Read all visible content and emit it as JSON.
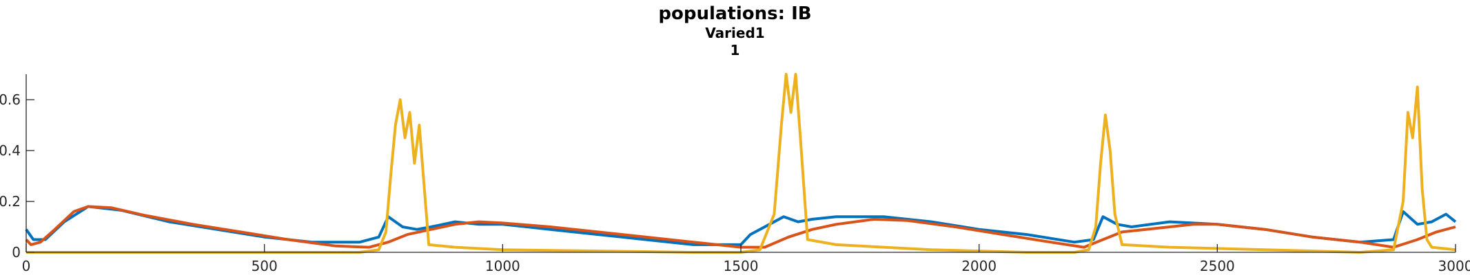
{
  "title": "populations: IB",
  "subtitle_1": "Varied1",
  "subtitle_2": "1",
  "chart_data": {
    "type": "line",
    "xlim": [
      0,
      3000
    ],
    "ylim": [
      0,
      0.7
    ],
    "grid": false,
    "xticks": [
      0,
      500,
      1000,
      1500,
      2000,
      2500,
      3000
    ],
    "xtick_labels": [
      "0",
      "500",
      "1000",
      "1500",
      "2000",
      "2500",
      "3000"
    ],
    "yticks": [
      0,
      0.2,
      0.4,
      0.6
    ],
    "ytick_labels": [
      "0",
      "0.2",
      "0.4",
      "0.6"
    ],
    "colors": {
      "blue": "#0072BD",
      "orange": "#D95319",
      "yellow": "#EDB120",
      "axis": "#262626"
    },
    "series": [
      {
        "color": "#0072BD",
        "x": [
          0,
          15,
          40,
          80,
          130,
          200,
          300,
          400,
          500,
          600,
          650,
          700,
          740,
          760,
          790,
          820,
          850,
          900,
          950,
          1000,
          1100,
          1200,
          1300,
          1400,
          1500,
          1520,
          1560,
          1590,
          1620,
          1650,
          1700,
          1800,
          1900,
          2000,
          2100,
          2200,
          2240,
          2260,
          2290,
          2320,
          2400,
          2500,
          2600,
          2700,
          2800,
          2870,
          2890,
          2920,
          2950,
          2980,
          3000
        ],
        "y": [
          0.09,
          0.05,
          0.05,
          0.12,
          0.18,
          0.165,
          0.12,
          0.09,
          0.06,
          0.04,
          0.04,
          0.04,
          0.06,
          0.14,
          0.1,
          0.09,
          0.1,
          0.12,
          0.11,
          0.11,
          0.09,
          0.07,
          0.05,
          0.03,
          0.03,
          0.07,
          0.11,
          0.14,
          0.12,
          0.13,
          0.14,
          0.14,
          0.12,
          0.09,
          0.07,
          0.04,
          0.05,
          0.14,
          0.11,
          0.1,
          0.12,
          0.11,
          0.09,
          0.06,
          0.04,
          0.05,
          0.16,
          0.11,
          0.12,
          0.15,
          0.12
        ]
      },
      {
        "color": "#D95319",
        "x": [
          0,
          10,
          30,
          60,
          100,
          130,
          180,
          250,
          350,
          450,
          550,
          650,
          720,
          760,
          800,
          850,
          900,
          950,
          1000,
          1100,
          1200,
          1300,
          1400,
          1500,
          1550,
          1600,
          1650,
          1700,
          1780,
          1850,
          1950,
          2050,
          2150,
          2220,
          2260,
          2300,
          2350,
          2400,
          2450,
          2500,
          2600,
          2700,
          2800,
          2870,
          2920,
          2960,
          3000
        ],
        "y": [
          0.05,
          0.03,
          0.04,
          0.09,
          0.16,
          0.18,
          0.175,
          0.145,
          0.11,
          0.08,
          0.05,
          0.025,
          0.02,
          0.04,
          0.07,
          0.09,
          0.11,
          0.12,
          0.115,
          0.1,
          0.08,
          0.06,
          0.04,
          0.02,
          0.02,
          0.06,
          0.09,
          0.11,
          0.13,
          0.125,
          0.1,
          0.07,
          0.04,
          0.02,
          0.05,
          0.08,
          0.09,
          0.1,
          0.11,
          0.11,
          0.09,
          0.06,
          0.04,
          0.02,
          0.05,
          0.08,
          0.1
        ]
      },
      {
        "color": "#EDB120",
        "x": [
          0,
          700,
          740,
          755,
          765,
          775,
          785,
          795,
          805,
          815,
          825,
          845,
          900,
          1000,
          1200,
          1400,
          1500,
          1540,
          1570,
          1585,
          1595,
          1605,
          1615,
          1625,
          1640,
          1700,
          1800,
          1900,
          2000,
          2100,
          2200,
          2230,
          2245,
          2255,
          2265,
          2275,
          2285,
          2300,
          2400,
          2500,
          2600,
          2700,
          2800,
          2870,
          2890,
          2900,
          2910,
          2920,
          2930,
          2940,
          2950,
          3000
        ],
        "y": [
          0,
          0,
          0.01,
          0.08,
          0.3,
          0.5,
          0.6,
          0.45,
          0.55,
          0.35,
          0.5,
          0.03,
          0.02,
          0.01,
          0.005,
          0,
          0,
          0.01,
          0.15,
          0.5,
          0.7,
          0.55,
          0.7,
          0.45,
          0.05,
          0.03,
          0.02,
          0.01,
          0.005,
          0,
          0,
          0.01,
          0.1,
          0.35,
          0.54,
          0.4,
          0.15,
          0.03,
          0.02,
          0.015,
          0.01,
          0.005,
          0,
          0.01,
          0.2,
          0.55,
          0.45,
          0.65,
          0.25,
          0.05,
          0.02,
          0.01
        ]
      }
    ]
  }
}
